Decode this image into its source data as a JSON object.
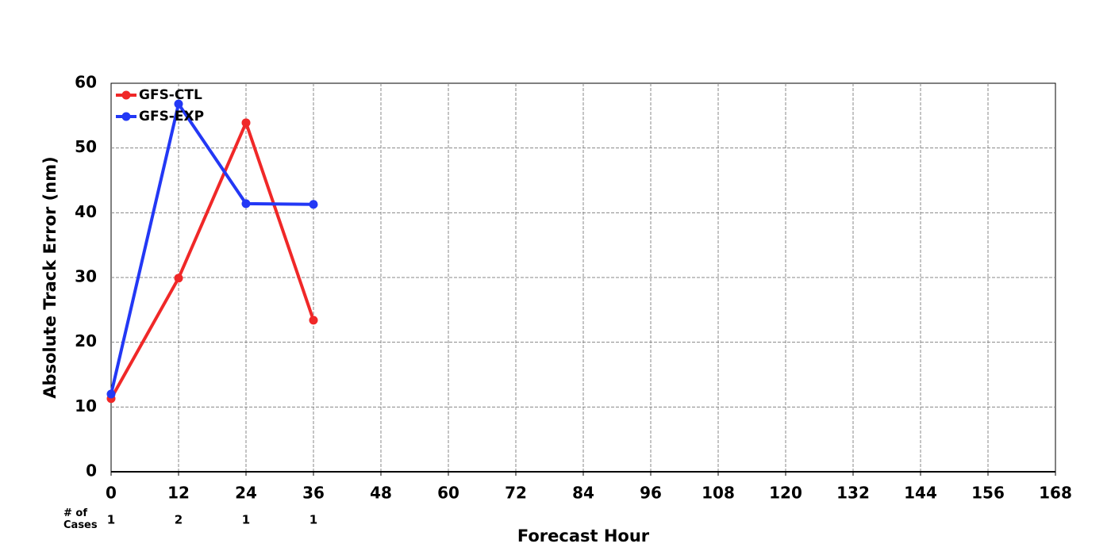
{
  "chart_data": {
    "type": "line",
    "x_label": "Forecast Hour",
    "y_label": "Absolute Track Error (nm)",
    "x": [
      0,
      12,
      24,
      36
    ],
    "series": [
      {
        "name": "GFS-CTL",
        "color": "#f02828",
        "values": [
          11.3,
          29.9,
          53.9,
          23.4
        ]
      },
      {
        "name": "GFS-EXP",
        "color": "#2338f5",
        "values": [
          12.0,
          56.8,
          41.4,
          41.3
        ]
      }
    ],
    "cases_label": "# of Cases",
    "cases": [
      1,
      2,
      1,
      1
    ],
    "xlim": [
      0,
      168
    ],
    "xticks": [
      0,
      12,
      24,
      36,
      48,
      60,
      72,
      84,
      96,
      108,
      120,
      132,
      144,
      156,
      168
    ],
    "ylim": [
      0,
      60
    ],
    "yticks": [
      0,
      10,
      20,
      30,
      40,
      50,
      60
    ],
    "grid": true,
    "legend": "upper-left"
  }
}
